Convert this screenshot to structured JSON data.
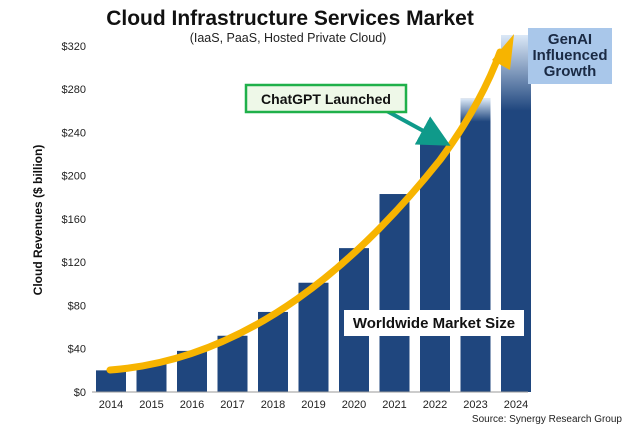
{
  "chart_data": {
    "type": "bar",
    "title": "Cloud Infrastructure Services Market",
    "subtitle": "(IaaS, PaaS, Hosted Private Cloud)",
    "ylabel": "Cloud Revenues ($ billion)",
    "xlabel": "",
    "categories": [
      "2014",
      "2015",
      "2016",
      "2017",
      "2018",
      "2019",
      "2020",
      "2021",
      "2022",
      "2023",
      "2024"
    ],
    "values": [
      20,
      26,
      38,
      52,
      74,
      101,
      133,
      183,
      229,
      271,
      330
    ],
    "ylim": [
      0,
      330
    ],
    "yticks": [
      0,
      40,
      80,
      120,
      160,
      200,
      240,
      280,
      320
    ],
    "ytick_labels": [
      "$0",
      "$40",
      "$80",
      "$120",
      "$160",
      "$200",
      "$240",
      "$280",
      "$320"
    ],
    "faded_portion": [
      {
        "category": "2023",
        "solid_to": 250
      },
      {
        "category": "2024",
        "solid_to": 260
      }
    ],
    "annotations": {
      "chatgpt": "ChatGPT Launched",
      "genai_line1": "GenAI",
      "genai_line2": "Influenced",
      "genai_line3": "Growth",
      "market": "Worldwide Market Size"
    },
    "source": "Source: Synergy Research Group",
    "colors": {
      "bar": "#1f467e",
      "bar_fade_top": "#dbe8f7",
      "arrow": "#f7b400",
      "callout_border": "#1fb04a",
      "callout_fill": "#eef8e8",
      "callout_arrow": "#0f9a8a",
      "genai_box": "#a9c7ea",
      "market_box": "#ffffff"
    }
  }
}
